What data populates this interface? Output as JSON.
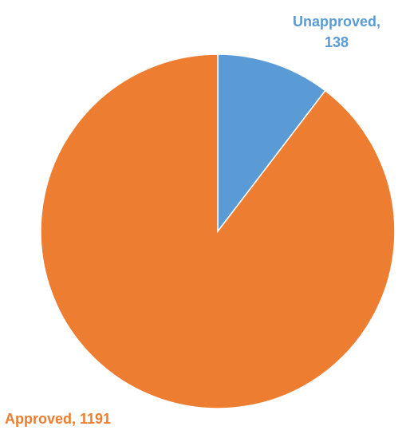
{
  "chart_data": {
    "type": "pie",
    "title": "",
    "slices": [
      {
        "label": "Unapproved",
        "value": 138,
        "color": "#5b9bd5"
      },
      {
        "label": "Approved",
        "value": 1191,
        "color": "#ed7d31"
      }
    ],
    "data_labels": {
      "unapproved": {
        "line1": "Unapproved,",
        "line2": "138"
      },
      "approved": {
        "line1": "Approved, 1191"
      }
    },
    "start_angle": "12 o'clock",
    "direction": "clockwise",
    "legend": "none"
  }
}
